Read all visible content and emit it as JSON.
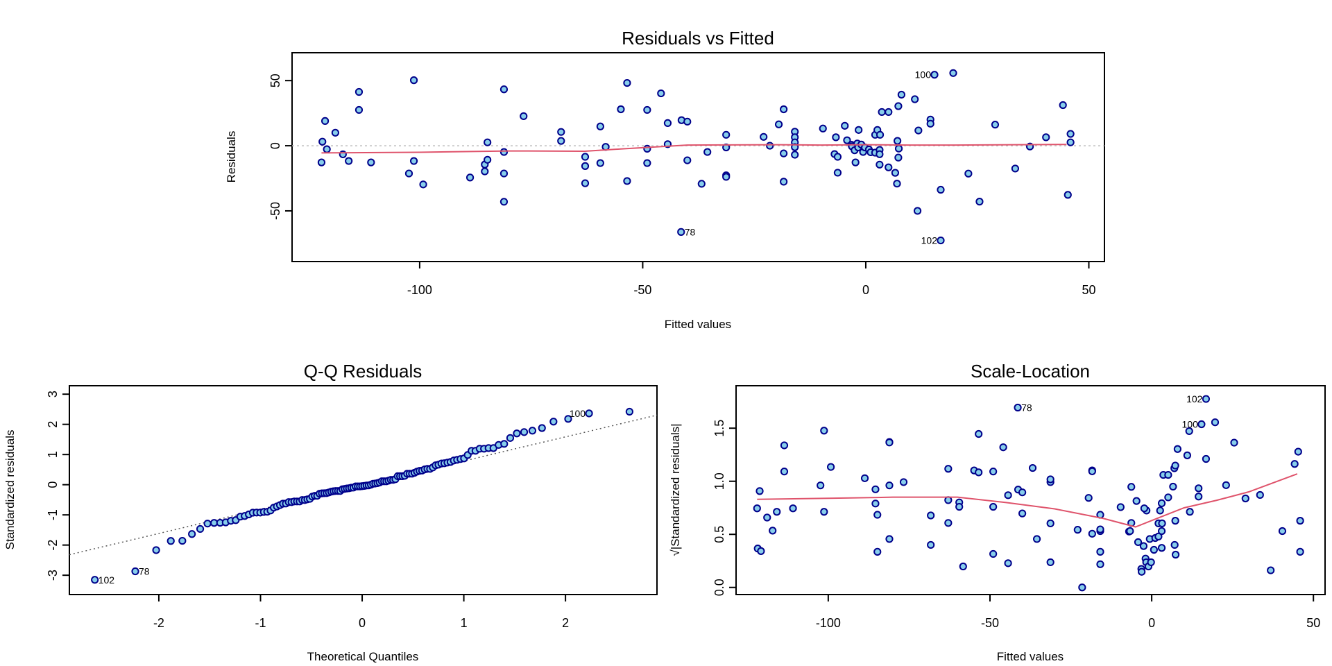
{
  "colors": {
    "point_fill": "#87CEEB",
    "point_stroke": "#00008B",
    "smoother": "#DF536B",
    "zero_line": "#BEBEBE",
    "qq_line": "#555555"
  },
  "chart_data": [
    {
      "type": "scatter",
      "title": "Residuals vs Fitted",
      "xlabel": "Fitted values",
      "ylabel": "Residuals",
      "xlim": [
        -128.6,
        53.5
      ],
      "ylim": [
        -88.9,
        71.4
      ],
      "xticks": [
        "-100",
        "-50",
        "0",
        "50"
      ],
      "yticks": [
        "-50",
        "0",
        "50"
      ],
      "grid": false,
      "reference_line": {
        "y": 0,
        "style": "dotted"
      },
      "points": [
        [
          -122,
          -12.8
        ],
        [
          -121.8,
          3.1
        ],
        [
          -121.2,
          19
        ],
        [
          -120.8,
          -2.7
        ],
        [
          -118.9,
          10
        ],
        [
          -117.2,
          -6.6
        ],
        [
          -115.9,
          -11.7
        ],
        [
          -113.6,
          41.3
        ],
        [
          -113.6,
          27.5
        ],
        [
          -110.9,
          -12.8
        ],
        [
          -101.3,
          50.3
        ],
        [
          -102.4,
          -21.3
        ],
        [
          -101.3,
          -11.7
        ],
        [
          -99.2,
          -29.7
        ],
        [
          -88.7,
          -24.4
        ],
        [
          -85.4,
          -14.4
        ],
        [
          -85.4,
          -19.7
        ],
        [
          -84.8,
          -10.8
        ],
        [
          -84.8,
          2.6
        ],
        [
          -81.1,
          43.3
        ],
        [
          -81.1,
          -4.8
        ],
        [
          -81.1,
          -21.3
        ],
        [
          -81.1,
          -43
        ],
        [
          -76.7,
          22.7
        ],
        [
          -68.3,
          10.6
        ],
        [
          -68.3,
          3.7
        ],
        [
          -62.9,
          -8.5
        ],
        [
          -62.9,
          -15.6
        ],
        [
          -62.9,
          -28.8
        ],
        [
          -59.5,
          14.8
        ],
        [
          -59.5,
          -13.3
        ],
        [
          -58.3,
          -0.9
        ],
        [
          -54.9,
          28
        ],
        [
          -53.5,
          48.2
        ],
        [
          -53.5,
          -27.1
        ],
        [
          -49,
          27.5
        ],
        [
          -49,
          -2.3
        ],
        [
          -49,
          -13.3
        ],
        [
          -45.9,
          40.2
        ],
        [
          -44.4,
          17.4
        ],
        [
          -44.4,
          1.2
        ],
        [
          -41.3,
          19.6
        ],
        [
          -40,
          18.5
        ],
        [
          -40,
          -11.2
        ],
        [
          -41.4,
          -66.2
        ],
        [
          -36.8,
          -29.2
        ],
        [
          -35.5,
          -4.8
        ],
        [
          -31.3,
          8.4
        ],
        [
          -31.3,
          -1.3
        ],
        [
          -31.3,
          -22.7
        ],
        [
          -31.3,
          -23.9
        ],
        [
          -22.9,
          6.8
        ],
        [
          -21.5,
          0
        ],
        [
          -19.5,
          16.4
        ],
        [
          -18.4,
          28
        ],
        [
          -18.4,
          -5.9
        ],
        [
          -18.4,
          -27.6
        ],
        [
          -15.9,
          10.8
        ],
        [
          -15.9,
          6.5
        ],
        [
          -15.9,
          2.6
        ],
        [
          -15.9,
          -1.1
        ],
        [
          -15.9,
          -6.9
        ],
        [
          -9.6,
          13.2
        ],
        [
          -7,
          -6.4
        ],
        [
          -6.3,
          -8.5
        ],
        [
          -6.3,
          -20.7
        ],
        [
          -6.7,
          6.5
        ],
        [
          -4.7,
          15.3
        ],
        [
          -4.2,
          4.2
        ],
        [
          -1.6,
          12.1
        ],
        [
          -2.3,
          -12.8
        ],
        [
          -3.2,
          0.7
        ],
        [
          -3.1,
          -0.5
        ],
        [
          -2.5,
          -3.5
        ],
        [
          -1.9,
          1.7
        ],
        [
          -1.7,
          -1.3
        ],
        [
          -1,
          0.9
        ],
        [
          -0.6,
          -4.8
        ],
        [
          -0.2,
          -1.3
        ],
        [
          0.7,
          -2.9
        ],
        [
          1.1,
          -5
        ],
        [
          2.1,
          -5.3
        ],
        [
          2.1,
          8.4
        ],
        [
          2.6,
          12.1
        ],
        [
          3.2,
          8.4
        ],
        [
          3.1,
          -3.2
        ],
        [
          3.1,
          -6.5
        ],
        [
          3.1,
          -14.5
        ],
        [
          3.6,
          25.9
        ],
        [
          5.1,
          25.9
        ],
        [
          5.1,
          -16.6
        ],
        [
          6.6,
          -20.8
        ],
        [
          7,
          -29.1
        ],
        [
          7.3,
          30.4
        ],
        [
          7.1,
          3.7
        ],
        [
          7.4,
          -2.2
        ],
        [
          7.3,
          -9.1
        ],
        [
          8,
          39.2
        ],
        [
          11,
          35.7
        ],
        [
          11.8,
          11.7
        ],
        [
          11.6,
          -50
        ],
        [
          14.5,
          20.1
        ],
        [
          14.5,
          16.9
        ],
        [
          15.4,
          54.5
        ],
        [
          16.8,
          -33.8
        ],
        [
          16.8,
          -72.7
        ],
        [
          19.6,
          55.8
        ],
        [
          23,
          -21.4
        ],
        [
          25.5,
          -42.9
        ],
        [
          29,
          16.2
        ],
        [
          33.5,
          -17.5
        ],
        [
          36.8,
          -0.6
        ],
        [
          40.4,
          6.5
        ],
        [
          44.2,
          31.2
        ],
        [
          45.3,
          -37.7
        ],
        [
          45.9,
          9.1
        ],
        [
          45.9,
          2.6
        ]
      ],
      "smoother": [
        [
          -122,
          -5.5
        ],
        [
          -100,
          -5
        ],
        [
          -80,
          -4
        ],
        [
          -63,
          -4.2
        ],
        [
          -55,
          -2.5
        ],
        [
          -45,
          -0.5
        ],
        [
          -40,
          0.5
        ],
        [
          -20,
          0.8
        ],
        [
          -10,
          0.5
        ],
        [
          0,
          0.8
        ],
        [
          10,
          0.5
        ],
        [
          20,
          0.5
        ],
        [
          45,
          1
        ]
      ],
      "labeled_points": [
        {
          "label": "100",
          "x": 15.4,
          "y": 54.5
        },
        {
          "label": "102",
          "x": 16.8,
          "y": -72.7
        },
        {
          "label": "78",
          "x": -41.4,
          "y": -66.2
        }
      ]
    },
    {
      "type": "scatter",
      "title": "Q-Q Residuals",
      "xlabel": "Theoretical Quantiles",
      "ylabel": "Standardized residuals",
      "xlim": [
        -2.88,
        2.9
      ],
      "ylim": [
        -3.64,
        3.28
      ],
      "xticks": [
        "-2",
        "-1",
        "0",
        "1",
        "2"
      ],
      "yticks": [
        "-3",
        "-2",
        "-1",
        "0",
        "1",
        "2",
        "3"
      ],
      "grid": false,
      "reference_line": {
        "style": "dotted"
      },
      "labeled_points": [
        "100",
        "102",
        "78"
      ]
    },
    {
      "type": "scatter",
      "title": "Scale-Location",
      "xlabel": "Fitted values",
      "ylabel": "√|Standardized residuals|",
      "xlim": [
        -128.5,
        53.6
      ],
      "ylim": [
        -0.067,
        1.9
      ],
      "xticks": [
        "-100",
        "-50",
        "0",
        "50"
      ],
      "yticks": [
        "0.0",
        "0.5",
        "1.0",
        "1.5"
      ],
      "grid": false,
      "smoother": [
        [
          -122,
          0.83
        ],
        [
          -100,
          0.84
        ],
        [
          -80,
          0.85
        ],
        [
          -60,
          0.85
        ],
        [
          -45,
          0.8
        ],
        [
          -30,
          0.74
        ],
        [
          -15,
          0.65
        ],
        [
          -5,
          0.57
        ],
        [
          0,
          0.63
        ],
        [
          10,
          0.75
        ],
        [
          20,
          0.82
        ],
        [
          30,
          0.9
        ],
        [
          45,
          1.07
        ]
      ],
      "labeled_points": [
        "102",
        "100",
        "78"
      ]
    }
  ]
}
